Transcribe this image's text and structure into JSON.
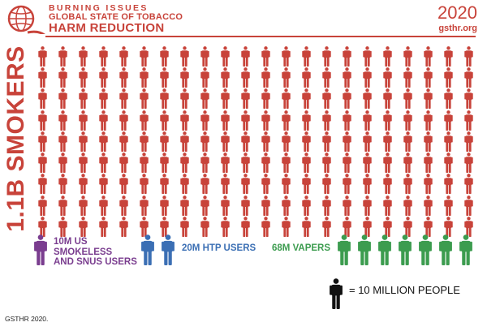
{
  "header": {
    "line1": "BURNING ISSUES",
    "line2": "GLOBAL STATE OF TOBACCO",
    "line3": "HARM REDUCTION",
    "year": "2020",
    "site": "gsthr.org"
  },
  "smokers_label": "1.1B SMOKERS",
  "grid": {
    "rows": 9,
    "cols": 22
  },
  "legend": {
    "snus": {
      "lines": [
        "10M US",
        "SMOKELESS",
        "AND SNUS USERS"
      ],
      "icon_count": 1
    },
    "htp": {
      "text": "20M HTP USERS",
      "icon_count": 2
    },
    "vapers": {
      "text": "68M VAPERS",
      "icon_count": 7
    }
  },
  "key": {
    "text": "= 10 MILLION PEOPLE"
  },
  "footer": "GSTHR 2020.",
  "icon_name": "person-icon",
  "colors": {
    "brand": "#c8433a",
    "smokers": "#c8433a",
    "snus": "#7a3d8f",
    "htp": "#3b6fb4",
    "vapers": "#3c9c4f",
    "key": "#111111"
  }
}
